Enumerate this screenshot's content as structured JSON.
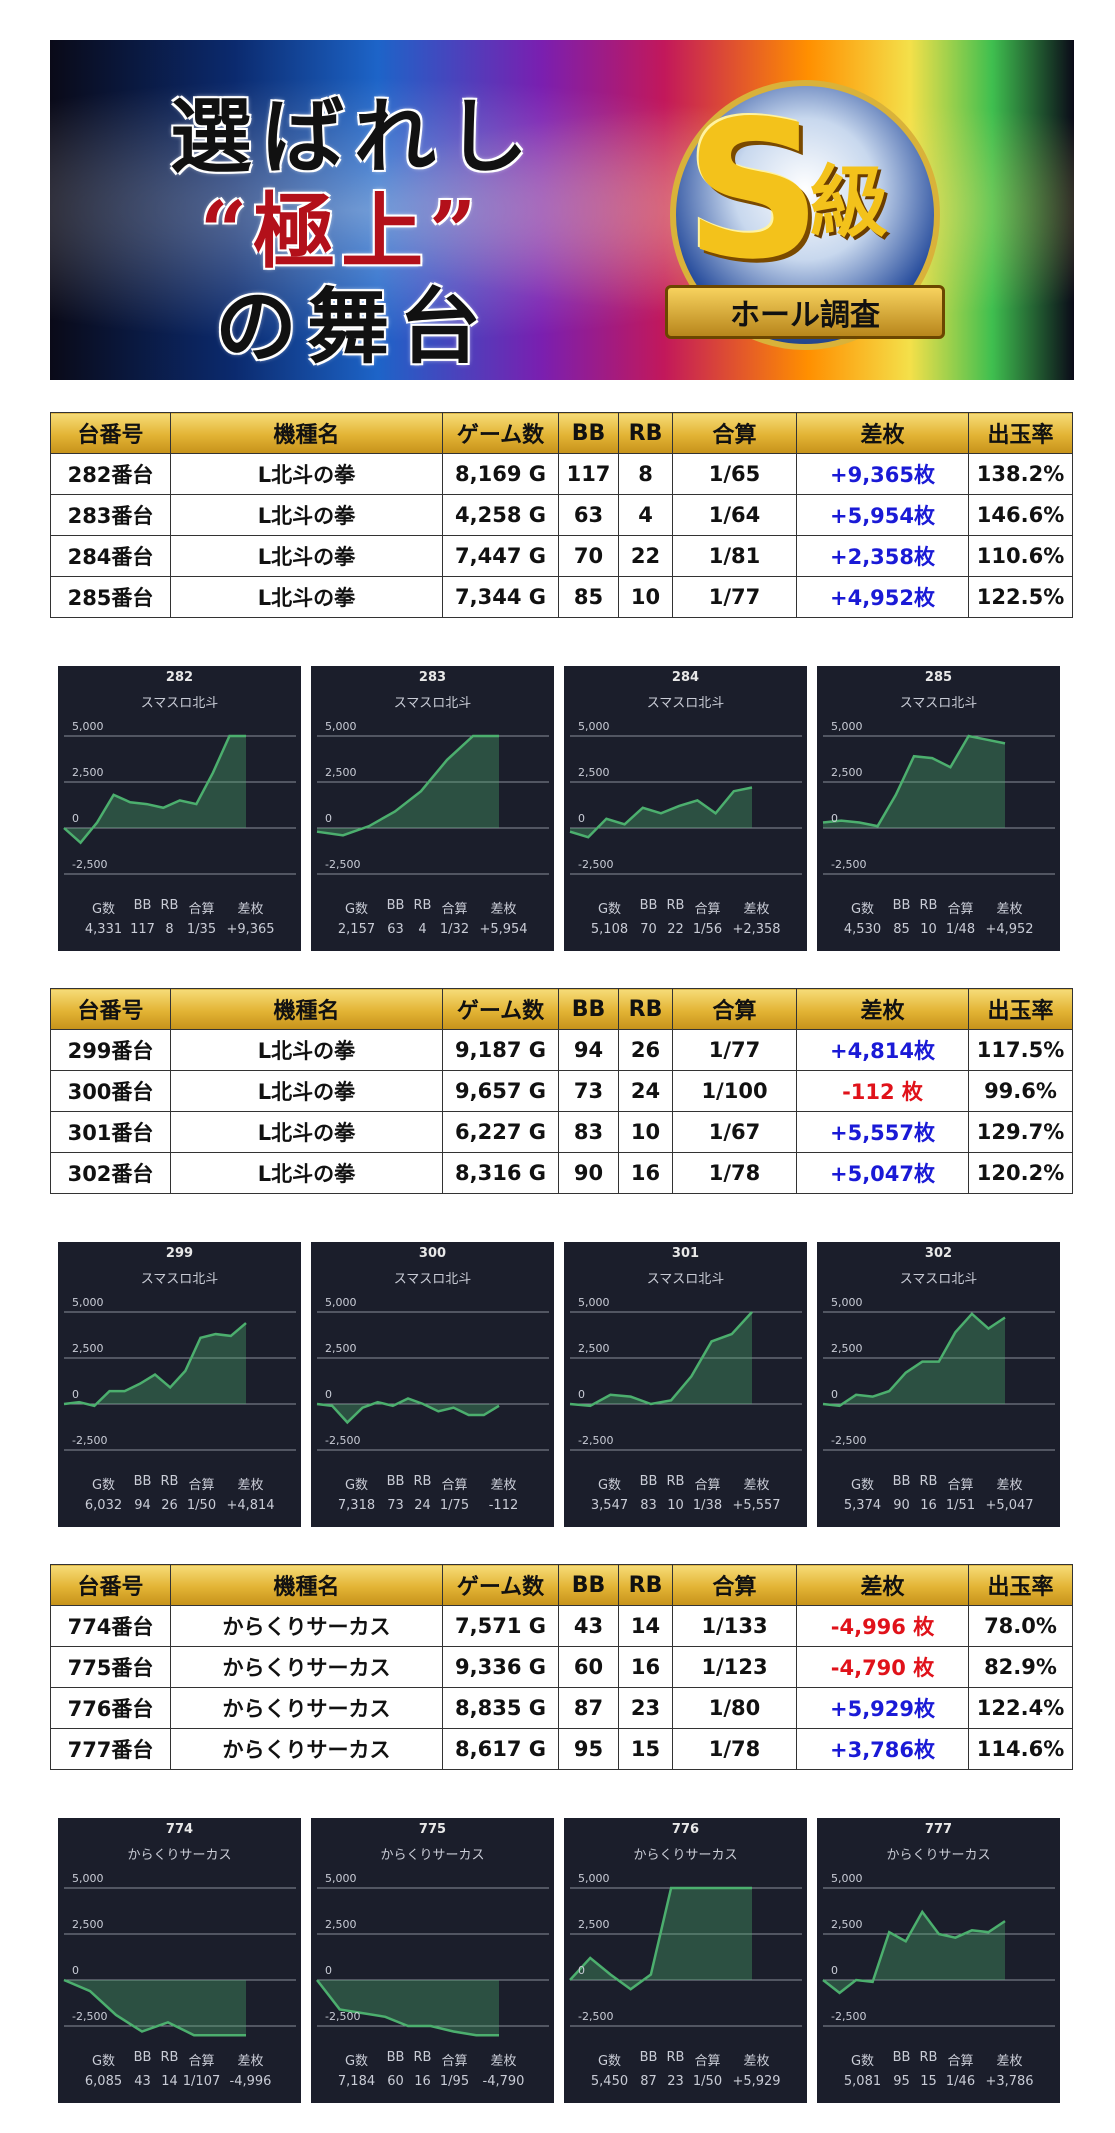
{
  "banner": {
    "line1": "選ばれし",
    "line2": "“極上”",
    "line3": "の舞台",
    "badge_letter": "S",
    "badge_kanji": "級",
    "badge_ribbon": "ホール調査"
  },
  "table_headers": [
    "台番号",
    "機種名",
    "ゲーム数",
    "BB",
    "RB",
    "合算",
    "差枚",
    "出玉率"
  ],
  "graph_headers": [
    "G数",
    "BB",
    "RB",
    "合算",
    "差枚"
  ],
  "graph_axis": [
    "5,000",
    "2,500",
    "0",
    "-2,500"
  ],
  "colors": {
    "positive": "#1a1ad6",
    "negative": "#e0121a",
    "line": "#4caf6e",
    "panel": "#1b1e2b",
    "header_gold": "#e2b334"
  },
  "groups": [
    {
      "rows": [
        {
          "no": "282番台",
          "model": "L北斗の拳",
          "games": "8,169 G",
          "bb": "117",
          "rb": "8",
          "combined": "1/65",
          "diff": "+9,365枚",
          "sign": "pos",
          "rate": "138.2%"
        },
        {
          "no": "283番台",
          "model": "L北斗の拳",
          "games": "4,258 G",
          "bb": "63",
          "rb": "4",
          "combined": "1/64",
          "diff": "+5,954枚",
          "sign": "pos",
          "rate": "146.6%"
        },
        {
          "no": "284番台",
          "model": "L北斗の拳",
          "games": "7,447 G",
          "bb": "70",
          "rb": "22",
          "combined": "1/81",
          "diff": "+2,358枚",
          "sign": "pos",
          "rate": "110.6%"
        },
        {
          "no": "285番台",
          "model": "L北斗の拳",
          "games": "7,344 G",
          "bb": "85",
          "rb": "10",
          "combined": "1/77",
          "diff": "+4,952枚",
          "sign": "pos",
          "rate": "122.5%"
        }
      ],
      "graphs": [
        {
          "number": "282",
          "name": "スマスロ北斗",
          "g": "4,331",
          "bb": "117",
          "rb": "8",
          "combined": "1/35",
          "diff": "+9,365",
          "curve": [
            0,
            -800,
            300,
            1800,
            1400,
            1300,
            1100,
            1500,
            1300,
            3000,
            5000,
            5000
          ]
        },
        {
          "number": "283",
          "name": "スマスロ北斗",
          "g": "2,157",
          "bb": "63",
          "rb": "4",
          "combined": "1/32",
          "diff": "+5,954",
          "curve": [
            -200,
            -400,
            100,
            900,
            2000,
            3700,
            5000,
            5000
          ]
        },
        {
          "number": "284",
          "name": "スマスロ北斗",
          "g": "5,108",
          "bb": "70",
          "rb": "22",
          "combined": "1/56",
          "diff": "+2,358",
          "curve": [
            -200,
            -500,
            500,
            200,
            1100,
            800,
            1200,
            1500,
            800,
            2000,
            2200
          ]
        },
        {
          "number": "285",
          "name": "スマスロ北斗",
          "g": "4,530",
          "bb": "85",
          "rb": "10",
          "combined": "1/48",
          "diff": "+4,952",
          "curve": [
            300,
            400,
            300,
            100,
            1800,
            3900,
            3800,
            3300,
            5000,
            4800,
            4600
          ]
        }
      ]
    },
    {
      "rows": [
        {
          "no": "299番台",
          "model": "L北斗の拳",
          "games": "9,187 G",
          "bb": "94",
          "rb": "26",
          "combined": "1/77",
          "diff": "+4,814枚",
          "sign": "pos",
          "rate": "117.5%"
        },
        {
          "no": "300番台",
          "model": "L北斗の拳",
          "games": "9,657 G",
          "bb": "73",
          "rb": "24",
          "combined": "1/100",
          "diff": "-112 枚",
          "sign": "neg",
          "rate": "99.6%"
        },
        {
          "no": "301番台",
          "model": "L北斗の拳",
          "games": "6,227 G",
          "bb": "83",
          "rb": "10",
          "combined": "1/67",
          "diff": "+5,557枚",
          "sign": "pos",
          "rate": "129.7%"
        },
        {
          "no": "302番台",
          "model": "L北斗の拳",
          "games": "8,316 G",
          "bb": "90",
          "rb": "16",
          "combined": "1/78",
          "diff": "+5,047枚",
          "sign": "pos",
          "rate": "120.2%"
        }
      ],
      "graphs": [
        {
          "number": "299",
          "name": "スマスロ北斗",
          "g": "6,032",
          "bb": "94",
          "rb": "26",
          "combined": "1/50",
          "diff": "+4,814",
          "curve": [
            0,
            100,
            -100,
            700,
            700,
            1100,
            1600,
            900,
            1800,
            3600,
            3800,
            3700,
            4400
          ]
        },
        {
          "number": "300",
          "name": "スマスロ北斗",
          "g": "7,318",
          "bb": "73",
          "rb": "24",
          "combined": "1/75",
          "diff": "-112",
          "curve": [
            0,
            -100,
            -1000,
            -200,
            100,
            -100,
            300,
            0,
            -400,
            -200,
            -600,
            -600,
            -100
          ]
        },
        {
          "number": "301",
          "name": "スマスロ北斗",
          "g": "3,547",
          "bb": "83",
          "rb": "10",
          "combined": "1/38",
          "diff": "+5,557",
          "curve": [
            0,
            -100,
            500,
            400,
            0,
            200,
            1500,
            3400,
            3800,
            5000
          ]
        },
        {
          "number": "302",
          "name": "スマスロ北斗",
          "g": "5,374",
          "bb": "90",
          "rb": "16",
          "combined": "1/51",
          "diff": "+5,047",
          "curve": [
            0,
            -100,
            500,
            400,
            700,
            1700,
            2300,
            2300,
            3900,
            4900,
            4100,
            4700
          ]
        }
      ]
    },
    {
      "rows": [
        {
          "no": "774番台",
          "model": "からくりサーカス",
          "games": "7,571 G",
          "bb": "43",
          "rb": "14",
          "combined": "1/133",
          "diff": "-4,996 枚",
          "sign": "neg",
          "rate": "78.0%"
        },
        {
          "no": "775番台",
          "model": "からくりサーカス",
          "games": "9,336 G",
          "bb": "60",
          "rb": "16",
          "combined": "1/123",
          "diff": "-4,790 枚",
          "sign": "neg",
          "rate": "82.9%"
        },
        {
          "no": "776番台",
          "model": "からくりサーカス",
          "games": "8,835 G",
          "bb": "87",
          "rb": "23",
          "combined": "1/80",
          "diff": "+5,929枚",
          "sign": "pos",
          "rate": "122.4%"
        },
        {
          "no": "777番台",
          "model": "からくりサーカス",
          "games": "8,617 G",
          "bb": "95",
          "rb": "15",
          "combined": "1/78",
          "diff": "+3,786枚",
          "sign": "pos",
          "rate": "114.6%"
        }
      ],
      "graphs": [
        {
          "number": "774",
          "name": "からくりサーカス",
          "g": "6,085",
          "bb": "43",
          "rb": "14",
          "combined": "1/107",
          "diff": "-4,996",
          "curve": [
            0,
            -600,
            -1900,
            -2800,
            -2300,
            -3000,
            -3000,
            -3000
          ]
        },
        {
          "number": "775",
          "name": "からくりサーカス",
          "g": "7,184",
          "bb": "60",
          "rb": "16",
          "combined": "1/95",
          "diff": "-4,790",
          "curve": [
            0,
            -1600,
            -1800,
            -2000,
            -2500,
            -2500,
            -2800,
            -3000,
            -3000
          ]
        },
        {
          "number": "776",
          "name": "からくりサーカス",
          "g": "5,450",
          "bb": "87",
          "rb": "23",
          "combined": "1/50",
          "diff": "+5,929",
          "curve": [
            0,
            1200,
            300,
            -500,
            300,
            5000,
            5000,
            5000,
            5000,
            5000
          ]
        },
        {
          "number": "777",
          "name": "からくりサーカス",
          "g": "5,081",
          "bb": "95",
          "rb": "15",
          "combined": "1/46",
          "diff": "+3,786",
          "curve": [
            0,
            -700,
            0,
            -100,
            2600,
            2100,
            3700,
            2500,
            2300,
            2700,
            2600,
            3200
          ]
        }
      ]
    }
  ]
}
